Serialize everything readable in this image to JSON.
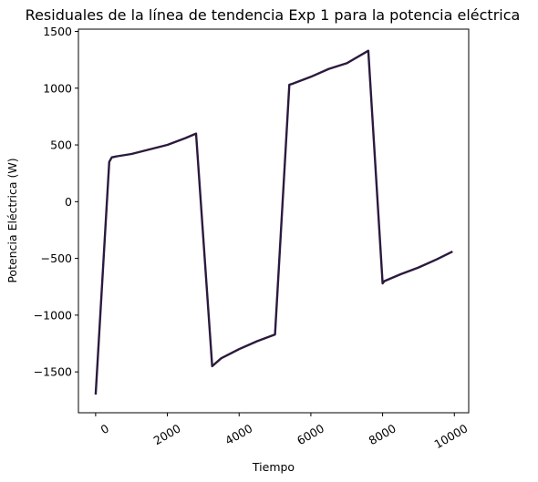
{
  "chart_data": {
    "type": "line",
    "title": "Residuales de la línea de tendencia Exp 1 para la potencia eléctrica",
    "xlabel": "Tiempo",
    "ylabel": "Potencia Eléctrica (W)",
    "xlim": [
      -480,
      10400
    ],
    "ylim": [
      -1860,
      1520
    ],
    "xticks": [
      0,
      2000,
      4000,
      6000,
      8000,
      10000
    ],
    "xtick_labels": [
      "0",
      "2000",
      "4000",
      "6000",
      "8000",
      "10000"
    ],
    "yticks": [
      -1500,
      -1000,
      -500,
      0,
      500,
      1000,
      1500
    ],
    "ytick_labels": [
      "−1500",
      "−1000",
      "−500",
      "0",
      "500",
      "1000",
      "1500"
    ],
    "xtick_rotation": 30,
    "grid": false,
    "line_color": "#2b1a3d",
    "series": [
      {
        "x": [
          0,
          380,
          450,
          600,
          1000,
          1500,
          2000,
          2500,
          2800,
          3250,
          3500,
          4000,
          4500,
          5000,
          5400,
          5500,
          6000,
          6500,
          7000,
          7600,
          8000,
          8050,
          8500,
          9000,
          9500,
          9950
        ],
        "values": [
          -1700,
          350,
          390,
          400,
          420,
          460,
          500,
          560,
          600,
          -1450,
          -1380,
          -1300,
          -1230,
          -1170,
          1030,
          1040,
          1100,
          1170,
          1220,
          1330,
          -720,
          -700,
          -640,
          -580,
          -510,
          -440
        ]
      }
    ]
  }
}
